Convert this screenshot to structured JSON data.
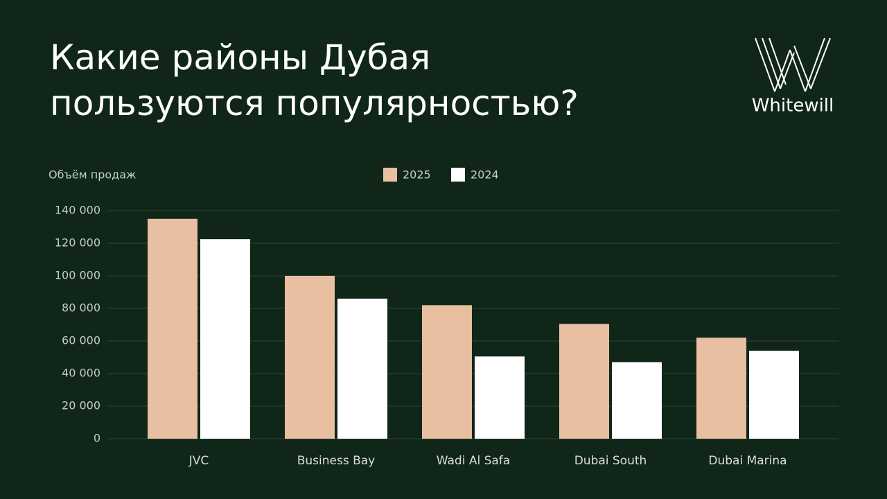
{
  "chart_data": {
    "type": "bar",
    "title": [
      "Какие районы Дубая",
      "пользуются популярностью?"
    ],
    "brand": "Whitewill",
    "y_label": "Объём продаж",
    "categories": [
      "JVC",
      "Business Bay",
      "Wadi Al Safa",
      "Dubai South",
      "Dubai Marina"
    ],
    "series": [
      {
        "name": "2025",
        "color": "#e8bfa0",
        "values": [
          135000,
          100000,
          82000,
          70500,
          62000
        ]
      },
      {
        "name": "2024",
        "color": "#ffffff",
        "values": [
          122500,
          86000,
          50500,
          47000,
          54000
        ]
      }
    ],
    "ylim": [
      0,
      140000
    ],
    "yticks": [
      0,
      {
        "value": 20000,
        "label": "20 000"
      },
      {
        "value": 40000,
        "label": "40 000"
      },
      {
        "value": 60000,
        "label": "60 000"
      },
      {
        "value": 80000,
        "label": "80 000"
      },
      {
        "value": 100000,
        "label": "100 000"
      },
      {
        "value": 120000,
        "label": "120 000"
      },
      {
        "value": 140000,
        "label": "140 000"
      }
    ],
    "grid": true
  }
}
